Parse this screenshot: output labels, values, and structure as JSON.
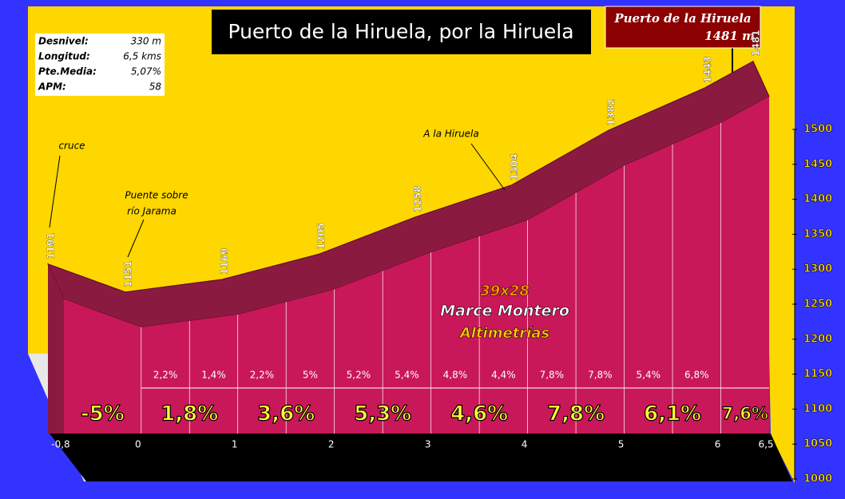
{
  "chart_data": {
    "type": "area",
    "title": "Puerto de la Hiruela, por la Hiruela",
    "summit": {
      "name": "Puerto de la Hiruela",
      "altitude": "1481 m"
    },
    "stats": [
      [
        "Desnivel:",
        "330 m"
      ],
      [
        "Longitud:",
        "6,5 kms"
      ],
      [
        "Pte.Media:",
        "5,07%"
      ],
      [
        "APM:",
        "58"
      ]
    ],
    "x": [
      -0.8,
      0,
      1,
      2,
      3,
      4,
      5,
      6,
      6.5
    ],
    "series": [
      {
        "color": "#c8185a",
        "values": [
          1191,
          1151,
          1169,
          1205,
          1258,
          1304,
          1382,
          1443,
          1481
        ]
      }
    ],
    "xlim": [
      -0.8,
      6.5
    ],
    "xticks": [
      {
        "value": -0.8,
        "label": "-0,8"
      },
      0,
      1,
      2,
      3,
      4,
      5,
      6,
      {
        "value": 6.5,
        "label": "6,5"
      }
    ],
    "ylim": [
      1000,
      1500
    ],
    "yticks": [
      1000,
      1050,
      1100,
      1150,
      1200,
      1250,
      1300,
      1350,
      1400,
      1450,
      1500
    ],
    "half_km_gradients": {
      "bins": [
        0,
        0.5,
        1,
        1.5,
        2,
        2.5,
        3,
        3.5,
        4,
        4.5,
        5,
        5.5,
        6
      ],
      "values": [
        2.2,
        1.4,
        2.2,
        5,
        5.2,
        5.4,
        4.8,
        4.4,
        7.8,
        7.8,
        5.4,
        6.8
      ],
      "value_labels": [
        "2,2%",
        "1,4%",
        "2,2%",
        "5%",
        "5,2%",
        "5,4%",
        "4,8%",
        "4,4%",
        "7,8%",
        "7,8%",
        "5,4%",
        "6,8%"
      ]
    },
    "km_gradients": {
      "bins": [
        -0.8,
        0,
        1,
        2,
        3,
        4,
        5,
        6,
        6.5
      ],
      "values": [
        -5,
        1.8,
        3.6,
        5.3,
        4.6,
        7.8,
        6.1,
        7.6
      ],
      "value_labels": [
        "-5%",
        "1,8%",
        "3,6%",
        "5,3%",
        "4,6%",
        "7,8%",
        "6,1%",
        "7,6%"
      ]
    },
    "annotations": [
      {
        "lines": [
          "cruce"
        ]
      },
      {
        "lines": [
          "Puente sobre",
          "río Jarama"
        ]
      },
      {
        "lines": [
          "A la Hiruela"
        ]
      }
    ],
    "watermark": [
      "39x28",
      "Marce Montero",
      "Altimetrías"
    ]
  }
}
